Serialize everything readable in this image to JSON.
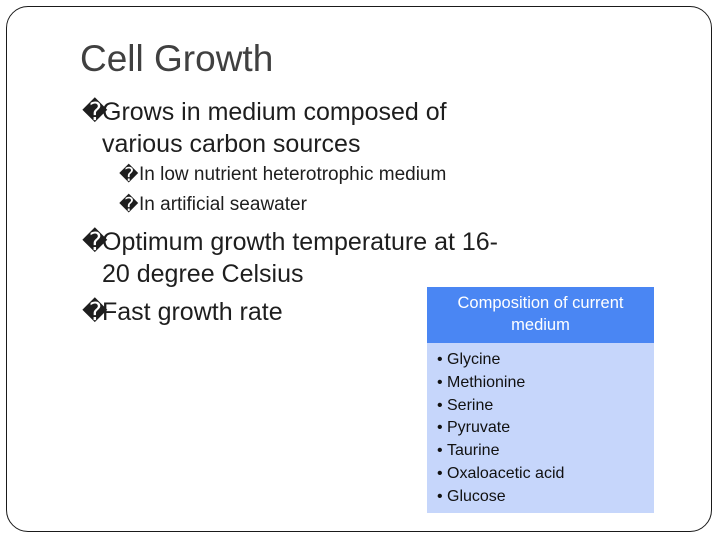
{
  "slide": {
    "title": "Cell Growth",
    "bullet_glyph": "�",
    "bullets": [
      {
        "line1": "Grows in medium composed of",
        "line2": "various carbon sources",
        "sub": [
          "In low nutrient heterotrophic medium",
          "In artificial seawater"
        ]
      },
      {
        "line1": "Optimum growth temperature at 16-",
        "line2": "20 degree Celsius"
      },
      {
        "line1": "Fast growth rate"
      }
    ]
  },
  "composition_box": {
    "header": "Composition of current medium",
    "items": [
      "Glycine",
      "Methionine",
      "Serine",
      "Pyruvate",
      "Taurine",
      "Oxaloacetic acid",
      "Glucose"
    ],
    "header_color": "#4a86f3",
    "body_color": "#c6d6fb"
  }
}
